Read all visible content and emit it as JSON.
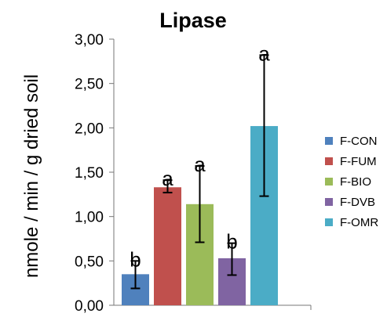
{
  "chart_data": {
    "type": "bar",
    "title": "Lipase",
    "xlabel": "",
    "ylabel": "nmole / min / g dried soil",
    "ylim": [
      0,
      3.0
    ],
    "yticks": [
      "0,00",
      "0,50",
      "1,00",
      "1,50",
      "2,00",
      "2,50",
      "3,00"
    ],
    "grid": false,
    "legend_position": "right",
    "series": [
      {
        "name": "F-CON",
        "value": 0.35,
        "err_low": 0.19,
        "err_high": 0.5,
        "letter": "b",
        "color": "#4F81BD"
      },
      {
        "name": "F-FUM",
        "value": 1.33,
        "err_low": 1.27,
        "err_high": 1.41,
        "letter": "a",
        "color": "#C0504D"
      },
      {
        "name": "F-BIO",
        "value": 1.14,
        "err_low": 0.71,
        "err_high": 1.57,
        "letter": "a",
        "color": "#9BBB59"
      },
      {
        "name": "F-DVB",
        "value": 0.53,
        "err_low": 0.34,
        "err_high": 0.7,
        "letter": "b",
        "color": "#8064A2"
      },
      {
        "name": "F-OMR",
        "value": 2.02,
        "err_low": 1.23,
        "err_high": 2.82,
        "letter": "a",
        "color": "#4BACC6"
      }
    ]
  }
}
